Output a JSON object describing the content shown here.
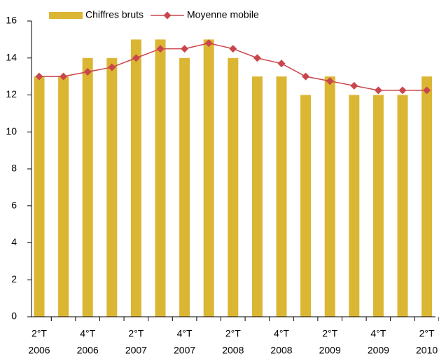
{
  "chart_data": {
    "type": "bar_line",
    "categories": [
      [
        "2°T",
        "2006"
      ],
      null,
      [
        "4°T",
        "2006"
      ],
      null,
      [
        "2°T",
        "2007"
      ],
      null,
      [
        "4°T",
        "2007"
      ],
      null,
      [
        "2°T",
        "2008"
      ],
      null,
      [
        "4°T",
        "2008"
      ],
      null,
      [
        "2°T",
        "2009"
      ],
      null,
      [
        "4°T",
        "2009"
      ],
      null,
      [
        "2°T",
        "2010"
      ]
    ],
    "series": [
      {
        "name": "Chiffres bruts",
        "kind": "bar",
        "color": "#dbb633",
        "values": [
          13,
          13,
          14,
          14,
          15,
          15,
          14,
          15,
          14,
          13,
          13,
          12,
          13,
          12,
          12,
          12,
          13
        ]
      },
      {
        "name": "Moyenne mobile",
        "kind": "line",
        "color": "#c8464c",
        "values": [
          13.0,
          13.0,
          13.25,
          13.5,
          14.0,
          14.5,
          14.5,
          14.8,
          14.5,
          14.0,
          13.7,
          13.0,
          12.75,
          12.5,
          12.25,
          12.25,
          12.25
        ]
      }
    ],
    "ylim": [
      0,
      16
    ],
    "yticks": [
      0,
      2,
      4,
      6,
      8,
      10,
      12,
      14,
      16
    ],
    "legend": "top"
  }
}
